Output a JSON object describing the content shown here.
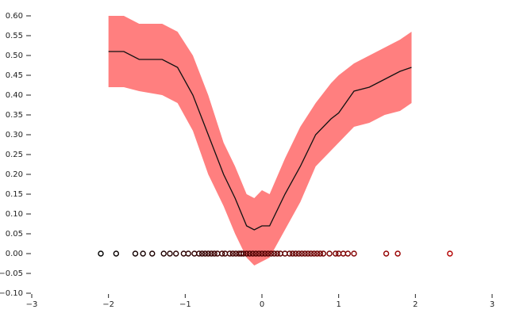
{
  "chart_data": {
    "type": "line",
    "xlim": [
      -3,
      3
    ],
    "xticks": [
      {
        "value": -3,
        "label": "−3"
      },
      {
        "value": -2,
        "label": "−2"
      },
      {
        "value": -1,
        "label": "−1"
      },
      0,
      1,
      2,
      3
    ],
    "ylim": [
      -0.1,
      0.6
    ],
    "yticks": [
      {
        "value": -0.1,
        "label": "−0.10"
      },
      {
        "value": -0.05,
        "label": "−0.05"
      },
      {
        "value": 0,
        "label": "0.00"
      },
      {
        "value": 0.05,
        "label": "0.05"
      },
      {
        "value": 0.1,
        "label": "0.10"
      },
      {
        "value": 0.15,
        "label": "0.15"
      },
      {
        "value": 0.2,
        "label": "0.20"
      },
      {
        "value": 0.25,
        "label": "0.25"
      },
      {
        "value": 0.3,
        "label": "0.30"
      },
      {
        "value": 0.35,
        "label": "0.35"
      },
      {
        "value": 0.4,
        "label": "0.40"
      },
      {
        "value": 0.45,
        "label": "0.45"
      },
      {
        "value": 0.5,
        "label": "0.50"
      },
      {
        "value": 0.55,
        "label": "0.55"
      },
      {
        "value": 0.6,
        "label": "0.60"
      }
    ],
    "grid": false,
    "x": [
      -2,
      -1.8,
      -1.6,
      -1.3,
      -1.1,
      -0.9,
      -0.7,
      -0.5,
      -0.35,
      -0.2,
      -0.1,
      0,
      0.1,
      0.3,
      0.5,
      0.7,
      0.9,
      1.0,
      1.2,
      1.4,
      1.6,
      1.8,
      1.95
    ],
    "series": [
      {
        "color": "#111111",
        "values": [
          0.51,
          0.51,
          0.49,
          0.49,
          0.47,
          0.4,
          0.3,
          0.2,
          0.14,
          0.07,
          0.06,
          0.07,
          0.07,
          0.15,
          0.22,
          0.3,
          0.34,
          0.355,
          0.41,
          0.42,
          0.44,
          0.46,
          0.47
        ]
      }
    ],
    "band": {
      "color": "#ff7f7f",
      "upper": [
        0.6,
        0.6,
        0.58,
        0.58,
        0.56,
        0.5,
        0.4,
        0.28,
        0.22,
        0.15,
        0.14,
        0.16,
        0.15,
        0.24,
        0.32,
        0.38,
        0.43,
        0.45,
        0.48,
        0.5,
        0.52,
        0.54,
        0.56
      ],
      "lower": [
        0.42,
        0.42,
        0.41,
        0.4,
        0.38,
        0.31,
        0.2,
        0.12,
        0.05,
        -0.01,
        -0.03,
        -0.02,
        -0.01,
        0.06,
        0.13,
        0.22,
        0.26,
        0.28,
        0.32,
        0.33,
        0.35,
        0.36,
        0.38
      ]
    },
    "points": {
      "cmap": [
        "#000000",
        "#b40000"
      ],
      "x": [
        -2.1,
        -1.9,
        -1.65,
        -1.55,
        -1.43,
        -1.28,
        -1.2,
        -1.12,
        -1.02,
        -0.96,
        -0.88,
        -0.82,
        -0.78,
        -0.74,
        -0.7,
        -0.66,
        -0.62,
        -0.58,
        -0.52,
        -0.48,
        -0.42,
        -0.38,
        -0.34,
        -0.3,
        -0.27,
        -0.24,
        -0.2,
        -0.16,
        -0.12,
        -0.08,
        -0.04,
        0,
        0.04,
        0.08,
        0.12,
        0.16,
        0.2,
        0.24,
        0.3,
        0.36,
        0.4,
        0.44,
        0.48,
        0.52,
        0.56,
        0.6,
        0.64,
        0.68,
        0.72,
        0.76,
        0.8,
        0.88,
        0.96,
        1.0,
        1.06,
        1.12,
        1.2,
        1.62,
        1.77,
        2.45
      ],
      "values": [
        0,
        0,
        0,
        0,
        0,
        0,
        0,
        0,
        0,
        0,
        0,
        0,
        0,
        0,
        0,
        0,
        0,
        0,
        0,
        0,
        0,
        0,
        0,
        0,
        0,
        0,
        0,
        0,
        0,
        0,
        0,
        0,
        0,
        0,
        0,
        0,
        0,
        0,
        0,
        0,
        0,
        0,
        0,
        0,
        0,
        0,
        0,
        0,
        0,
        0,
        0,
        0,
        0,
        0,
        0,
        0,
        0,
        0,
        0,
        0
      ]
    }
  }
}
